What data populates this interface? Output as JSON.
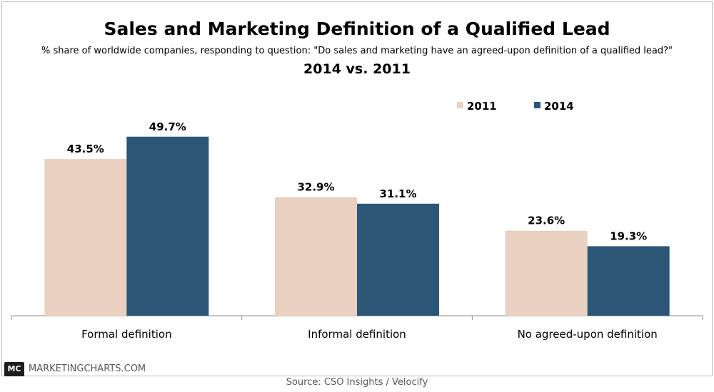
{
  "chart_data": {
    "type": "bar",
    "title": "Sales and Marketing Definition of a Qualified Lead",
    "subtitle": "% share of worldwide companies, responding to question: \"Do sales and marketing have an agreed-upon definition of a qualified lead?\"",
    "subtitle2": "2014 vs. 2011",
    "categories": [
      "Formal definition",
      "Informal definition",
      "No agreed-upon definition"
    ],
    "series": [
      {
        "name": "2011",
        "values": [
          43.5,
          32.9,
          23.6
        ],
        "labels": [
          "43.5%",
          "32.9%",
          "23.6%"
        ],
        "color": "#e9d0c0"
      },
      {
        "name": "2014",
        "values": [
          49.7,
          31.1,
          19.3
        ],
        "labels": [
          "49.7%",
          "31.1%",
          "19.3%"
        ],
        "color": "#2c5677"
      }
    ],
    "ylim": [
      0,
      55
    ],
    "xlabel": "",
    "ylabel": "",
    "grid": false,
    "legend": "top-right"
  },
  "footer": {
    "logo": "MC",
    "site": "MARKETINGCHARTS.COM",
    "source": "Source: CSO Insights / Velocify"
  }
}
